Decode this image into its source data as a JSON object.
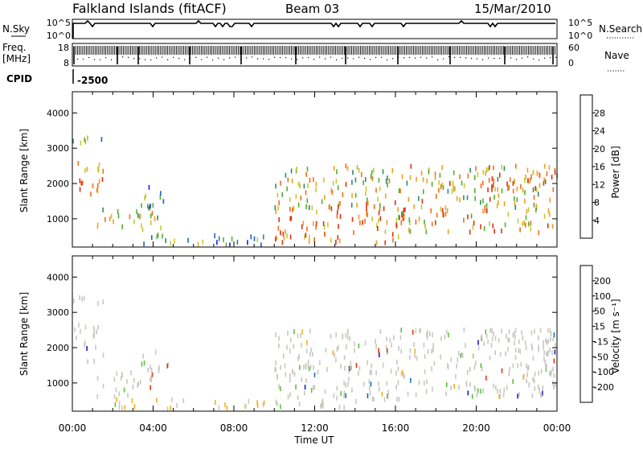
{
  "header": {
    "station": "Falkland Islands (fitACF)",
    "beam": "Beam 03",
    "date": "15/Mar/2010"
  },
  "panels": {
    "nsky": {
      "label": "N.Sky",
      "ticks": [
        "10^5",
        "10^0"
      ],
      "right_ticks": [
        "10^5",
        "10^0"
      ],
      "right_label": "N.Search"
    },
    "freq": {
      "label_line1": "Freq.",
      "label_line2": "[MHz]",
      "ticks": [
        "18",
        "8"
      ],
      "right_ticks": [
        "60",
        "0"
      ],
      "right_label": "Nave"
    },
    "cpid": {
      "label": "CPID",
      "value": "-2500"
    }
  },
  "chart_data": [
    {
      "type": "heatmap",
      "name": "power",
      "xlabel": "Time UT",
      "ylabel": "Slant Range [km]",
      "y_ticks": [
        1000,
        2000,
        3000,
        4000
      ],
      "ylim": [
        200,
        4600
      ],
      "xlim": [
        0,
        24
      ],
      "x_ticks": [
        "00:00",
        "04:00",
        "08:00",
        "12:00",
        "16:00",
        "20:00",
        "00:00"
      ],
      "colorbar": {
        "label": "Power [dB]",
        "ticks": [
          "4",
          "8",
          "12",
          "16",
          "20",
          "24",
          "28"
        ],
        "colors": [
          "#1a1aff",
          "#2060c0",
          "#2f8a6a",
          "#52b030",
          "#c8c830",
          "#f0a020",
          "#f07018",
          "#e03010"
        ]
      },
      "regions": [
        {
          "t0": 0.0,
          "t1": 1.5,
          "r0": 1600,
          "r1": 2700,
          "level": 0.75
        },
        {
          "t0": 0.0,
          "t1": 1.5,
          "r0": 3100,
          "r1": 3450,
          "level": 0.45
        },
        {
          "t0": 1.2,
          "t1": 4.5,
          "r0": 600,
          "r1": 1300,
          "level": 0.55
        },
        {
          "t0": 3.2,
          "t1": 4.8,
          "r0": 1300,
          "r1": 1900,
          "level": 0.25
        },
        {
          "t0": 2.0,
          "t1": 9.5,
          "r0": 250,
          "r1": 550,
          "level": 0.3
        },
        {
          "t0": 10.0,
          "t1": 16.5,
          "r0": 300,
          "r1": 1500,
          "level": 0.85
        },
        {
          "t0": 10.0,
          "t1": 24.0,
          "r0": 1300,
          "r1": 2500,
          "level": 0.6
        },
        {
          "t0": 16.0,
          "t1": 24.0,
          "r0": 600,
          "r1": 1300,
          "level": 0.7
        },
        {
          "t0": 20.0,
          "t1": 24.0,
          "r0": 1800,
          "r1": 2500,
          "level": 0.85
        }
      ]
    },
    {
      "type": "heatmap",
      "name": "velocity",
      "xlabel": "Time UT",
      "ylabel": "Slant Range [km]",
      "y_ticks": [
        1000,
        2000,
        3000,
        4000
      ],
      "ylim": [
        200,
        4600
      ],
      "xlim": [
        0,
        24
      ],
      "x_ticks": [
        "00:00",
        "04:00",
        "08:00",
        "12:00",
        "16:00",
        "20:00",
        "00:00"
      ],
      "colorbar": {
        "label": "Velocity [m s⁻¹]",
        "ticks": [
          "200",
          "100",
          "50",
          "15",
          "-15",
          "-50",
          "-100",
          "-200"
        ],
        "colors": [
          "#1a1acc",
          "#2070b0",
          "#2f8a50",
          "#60c040",
          "#c8c8c0",
          "#f0b020",
          "#f07018",
          "#f03010",
          "#e00000"
        ]
      },
      "regions": [
        {
          "t0": 0.0,
          "t1": 1.5,
          "r0": 1600,
          "r1": 2700,
          "level": 0.5
        },
        {
          "t0": 0.0,
          "t1": 1.5,
          "r0": 3100,
          "r1": 3450,
          "level": 0.5
        },
        {
          "t0": 1.2,
          "t1": 4.5,
          "r0": 600,
          "r1": 1300,
          "level": 0.5
        },
        {
          "t0": 3.2,
          "t1": 4.8,
          "r0": 1300,
          "r1": 1900,
          "level": 0.5
        },
        {
          "t0": 2.0,
          "t1": 9.5,
          "r0": 250,
          "r1": 550,
          "level": 0.75
        },
        {
          "t0": 10.0,
          "t1": 16.5,
          "r0": 300,
          "r1": 1500,
          "level": 0.5
        },
        {
          "t0": 10.0,
          "t1": 24.0,
          "r0": 1300,
          "r1": 2500,
          "level": 0.5
        },
        {
          "t0": 16.0,
          "t1": 24.0,
          "r0": 600,
          "r1": 1300,
          "level": 0.5
        },
        {
          "t0": 20.0,
          "t1": 24.0,
          "r0": 1800,
          "r1": 2500,
          "level": 0.5
        }
      ]
    }
  ],
  "footer": {
    "xlabel": "Time UT"
  }
}
